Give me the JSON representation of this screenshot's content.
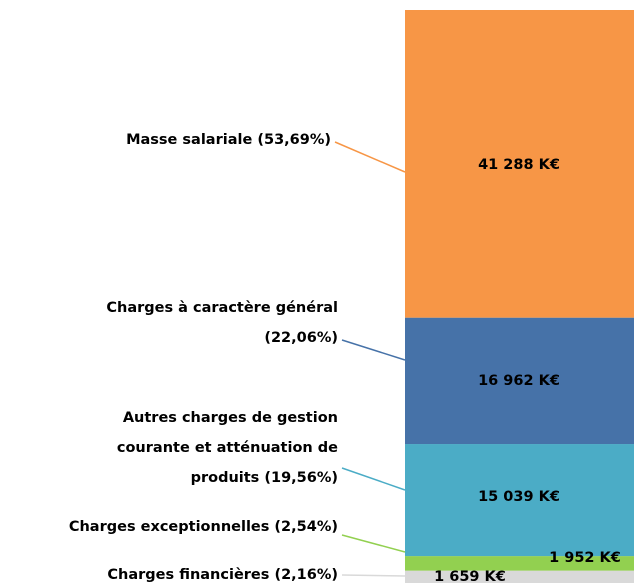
{
  "chart_data": {
    "type": "stacked-bar",
    "categories": [
      [
        "Charges financières  (2,16%)"
      ],
      [
        "Charges exceptionnelles  (2,54%)"
      ],
      [
        "Autres charges de gestion",
        "courante  et atténuation de",
        "produits (19,56%)"
      ],
      [
        "Charges à caractère général",
        "(22,06%)"
      ],
      [
        "Masse salariale  (53,69%)"
      ]
    ],
    "values": [
      1659,
      1952,
      15039,
      16962,
      41288
    ],
    "value_labels": [
      "1 659 K€",
      "1 952 K€",
      "15 039 K€",
      "16 962 K€",
      "41 288 K€"
    ],
    "colors": [
      "#d9d9d9",
      "#92d050",
      "#4bacc6",
      "#4672a8",
      "#f79646"
    ]
  }
}
